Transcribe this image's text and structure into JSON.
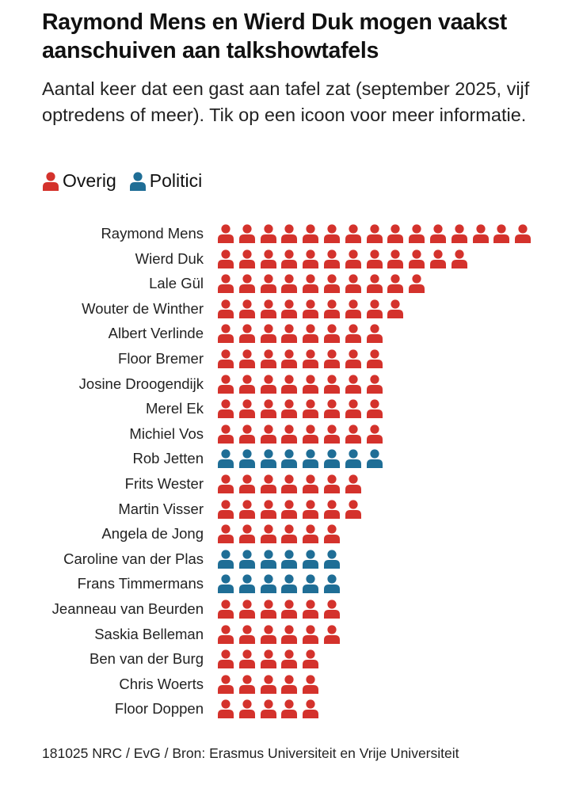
{
  "title": "Raymond Mens en Wierd Duk mogen vaakst aanschuiven aan talkshowtafels",
  "subtitle": "Aantal keer dat een gast aan tafel zat (september 2025, vijf optredens of meer). Tik op een icoon voor meer informatie.",
  "footer": "181025 NRC / EvG / Bron: Erasmus Universiteit en Vrije Universiteit",
  "colors": {
    "Overig": "#d4322c",
    "Politici": "#1f6e96"
  },
  "chart_data": {
    "type": "bar",
    "subtype": "pictogram",
    "title": "Raymond Mens en Wierd Duk mogen vaakst aanschuiven aan talkshowtafels",
    "legend": [
      "Overig",
      "Politici"
    ],
    "legend_placement": "top-left",
    "categories": [
      "Raymond Mens",
      "Wierd Duk",
      "Lale Gül",
      "Wouter de Winther",
      "Albert Verlinde",
      "Floor Bremer",
      "Josine Droogendijk",
      "Merel Ek",
      "Michiel Vos",
      "Rob Jetten",
      "Frits Wester",
      "Martin Visser",
      "Angela de Jong",
      "Caroline van der Plas",
      "Frans Timmermans",
      "Jeanneau van Beurden",
      "Saskia Belleman",
      "Ben van der Burg",
      "Chris Woerts",
      "Floor Doppen"
    ],
    "values": [
      15,
      12,
      10,
      9,
      8,
      8,
      8,
      8,
      8,
      8,
      7,
      7,
      6,
      6,
      6,
      6,
      6,
      5,
      5,
      5
    ],
    "groups": [
      "Overig",
      "Overig",
      "Overig",
      "Overig",
      "Overig",
      "Overig",
      "Overig",
      "Overig",
      "Overig",
      "Politici",
      "Overig",
      "Overig",
      "Overig",
      "Politici",
      "Politici",
      "Overig",
      "Overig",
      "Overig",
      "Overig",
      "Overig"
    ]
  }
}
